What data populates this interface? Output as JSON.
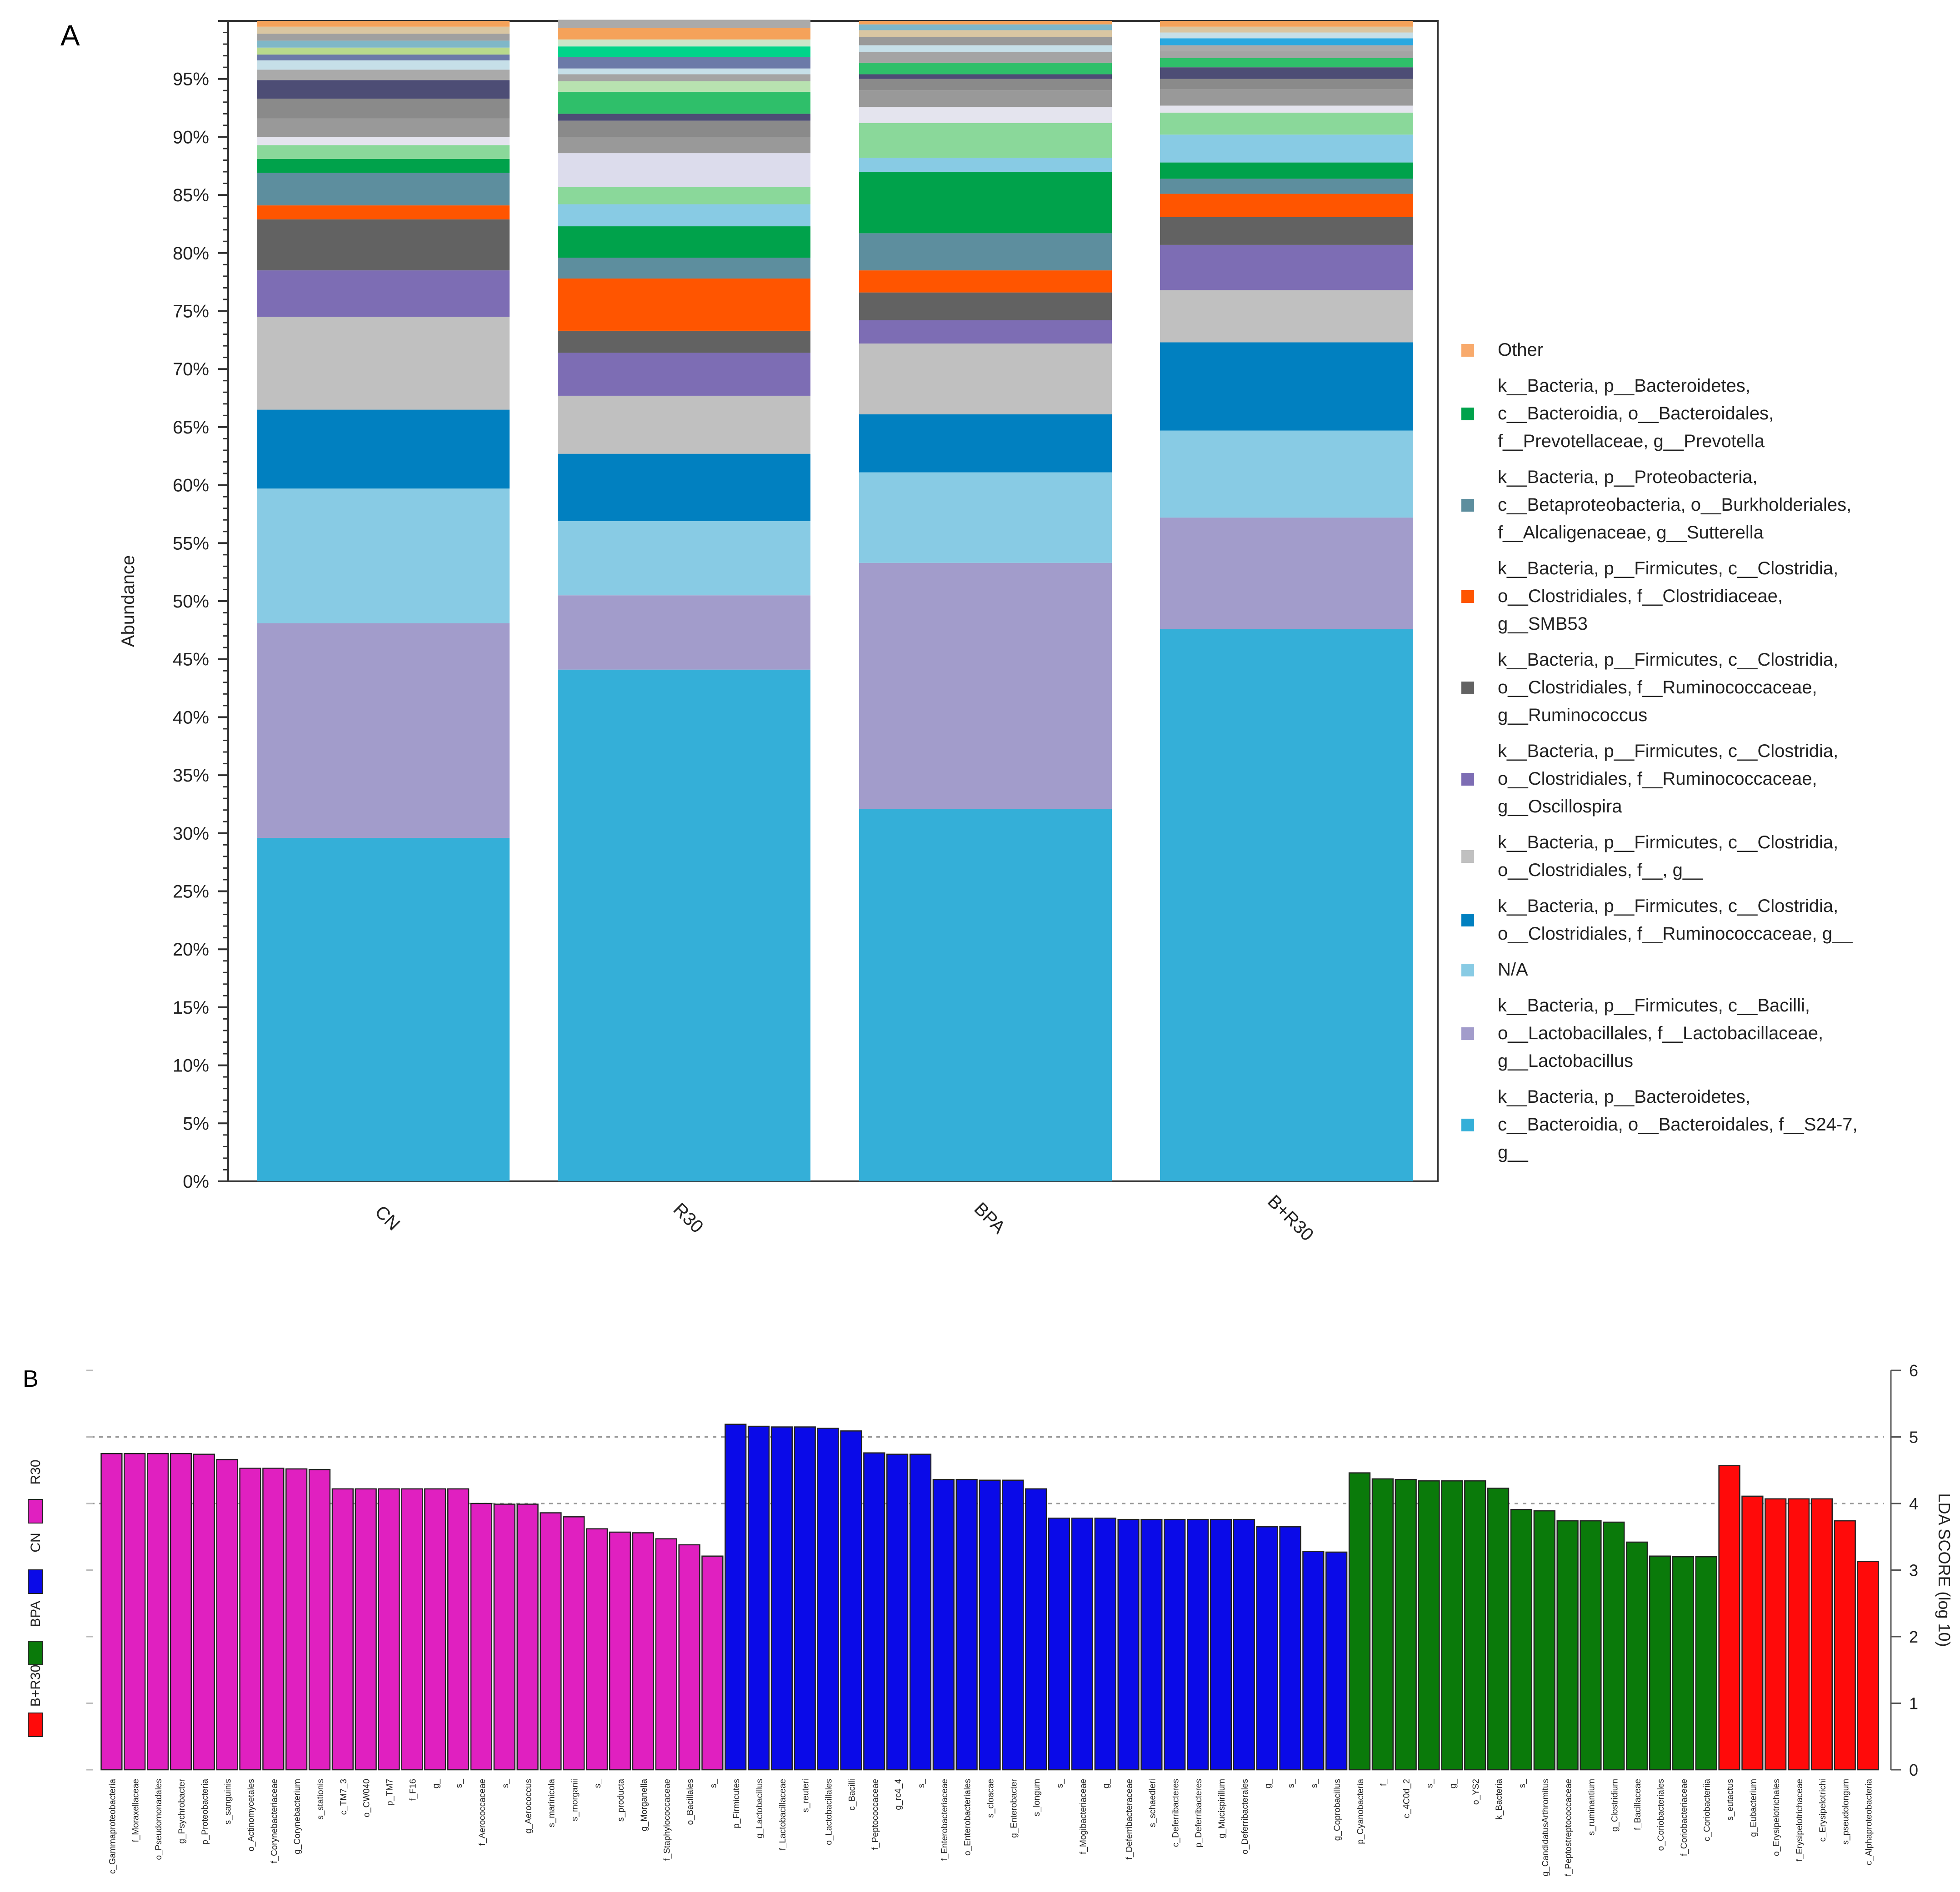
{
  "panel_labels": {
    "a": "A",
    "b": "B"
  },
  "chart_data": [
    {
      "type": "bar",
      "stacked": true,
      "panel": "A",
      "title": "",
      "xlabel": "",
      "ylabel": "Abundance",
      "ylim": [
        0,
        100
      ],
      "yticks": [
        0,
        5,
        10,
        15,
        20,
        25,
        30,
        35,
        40,
        45,
        50,
        55,
        60,
        65,
        70,
        75,
        80,
        85,
        90,
        95
      ],
      "ytick_labels": [
        "0%",
        "5%",
        "10%",
        "15%",
        "20%",
        "25%",
        "30%",
        "35%",
        "40%",
        "45%",
        "50%",
        "55%",
        "60%",
        "65%",
        "70%",
        "75%",
        "80%",
        "85%",
        "90%",
        "95%"
      ],
      "categories": [
        "CN",
        "R30",
        "BPA",
        "B+R30"
      ],
      "series": [
        {
          "name": "k__Bacteria, p__Bacteroidetes, c__Bacteroidia, o__Bacteroidales, f__S24-7, g__",
          "color": "#34afd8",
          "values": [
            29.6,
            44.1,
            32.1,
            47.6
          ]
        },
        {
          "name": "k__Bacteria, p__Firmicutes, c__Bacilli, o__Lactobacillales, f__Lactobacillaceae, g__Lactobacillus",
          "color": "#a29ccb",
          "values": [
            18.5,
            6.4,
            21.2,
            9.6
          ]
        },
        {
          "name": "N/A",
          "color": "#88cbe4",
          "values": [
            11.6,
            6.4,
            7.8,
            7.5
          ]
        },
        {
          "name": "k__Bacteria, p__Firmicutes, c__Clostridia, o__Clostridiales, f__Ruminococcaceae, g__",
          "color": "#0180c0",
          "values": [
            6.8,
            5.8,
            5.0,
            7.6
          ]
        },
        {
          "name": "k__Bacteria, p__Firmicutes, c__Clostridia, o__Clostridiales, f__, g__",
          "color": "#c0c0c0",
          "values": [
            8.0,
            5.0,
            6.1,
            4.5
          ]
        },
        {
          "name": "k__Bacteria, p__Firmicutes, c__Clostridia, o__Clostridiales, f__Ruminococcaceae, g__Oscillospira",
          "color": "#7d6db4",
          "values": [
            4.0,
            3.7,
            2.0,
            3.9
          ]
        },
        {
          "name": "k__Bacteria, p__Firmicutes, c__Clostridia, o__Clostridiales, f__Ruminococcaceae, g__Ruminococcus",
          "color": "#626262",
          "values": [
            4.4,
            1.9,
            2.4,
            2.4
          ]
        },
        {
          "name": "k__Bacteria, p__Firmicutes, c__Clostridia, o__Clostridiales, f__Clostridiaceae, g__SMB53",
          "color": "#ff5500",
          "values": [
            1.2,
            4.5,
            1.9,
            2.0
          ]
        },
        {
          "name": "k__Bacteria, p__Proteobacteria, c__Betaproteobacteria, o__Burkholderiales, f__Alcaligenaceae, g__Sutterella",
          "color": "#5d8e9e",
          "values": [
            2.8,
            1.8,
            3.2,
            1.3
          ]
        },
        {
          "name": "k__Bacteria, p__Bacteroidetes, c__Bacteroidia, o__Bacteroidales, f__Prevotellaceae, g__Prevotella",
          "color": "#00a24b",
          "values": [
            1.2,
            2.7,
            5.3,
            1.4
          ]
        },
        {
          "name": "Other",
          "color": "#f8aa6c",
          "values": [
            12.0,
            17.8,
            13.0,
            12.2
          ]
        }
      ],
      "other_segments": {
        "CN": [
          {
            "color": "#8ad89a",
            "value": 1.2
          },
          {
            "color": "#e4e4ee",
            "value": 0.7
          },
          {
            "color": "#999999",
            "value": 1.6
          },
          {
            "color": "#8a8a8a",
            "value": 1.7
          },
          {
            "color": "#4d4d75",
            "value": 1.6
          },
          {
            "color": "#aaaaaa",
            "value": 0.9
          },
          {
            "color": "#c6dfe8",
            "value": 0.8
          },
          {
            "color": "#6c7aa8",
            "value": 0.5
          },
          {
            "color": "#b8d98c",
            "value": 0.6
          },
          {
            "color": "#7fb7c8",
            "value": 0.6
          },
          {
            "color": "#a0a0a0",
            "value": 0.6
          },
          {
            "color": "#d9c6a2",
            "value": 0.6
          },
          {
            "color": "#f5a25a",
            "value": 0.5
          }
        ],
        "R30": [
          {
            "color": "#88cbe4",
            "value": 1.9
          },
          {
            "color": "#8ad89a",
            "value": 1.5
          },
          {
            "color": "#dcdcec",
            "value": 2.9
          },
          {
            "color": "#999999",
            "value": 1.4
          },
          {
            "color": "#8a8a8a",
            "value": 1.4
          },
          {
            "color": "#4d4d75",
            "value": 0.6
          },
          {
            "color": "#2fbf6a",
            "value": 1.9
          },
          {
            "color": "#b8e2b0",
            "value": 0.9
          },
          {
            "color": "#a4a4a4",
            "value": 0.6
          },
          {
            "color": "#c6dfe8",
            "value": 0.5
          },
          {
            "color": "#6c7aa8",
            "value": 1.0
          },
          {
            "color": "#00d48a",
            "value": 0.9
          },
          {
            "color": "#c8e6c9",
            "value": 0.6
          },
          {
            "color": "#f5a25a",
            "value": 1.0
          },
          {
            "color": "#aaaaaa",
            "value": 0.7
          }
        ],
        "BPA": [
          {
            "color": "#88cbe4",
            "value": 1.2
          },
          {
            "color": "#8ad89a",
            "value": 3.0
          },
          {
            "color": "#e4e4ee",
            "value": 1.4
          },
          {
            "color": "#999999",
            "value": 1.4
          },
          {
            "color": "#8a8a8a",
            "value": 1.0
          },
          {
            "color": "#4d4d75",
            "value": 0.4
          },
          {
            "color": "#2fbf6a",
            "value": 1.0
          },
          {
            "color": "#a4a4a4",
            "value": 0.9
          },
          {
            "color": "#c6dfe8",
            "value": 0.6
          },
          {
            "color": "#999999",
            "value": 0.7
          },
          {
            "color": "#d9c6a2",
            "value": 0.6
          },
          {
            "color": "#7fb7c8",
            "value": 0.5
          },
          {
            "color": "#f5a25a",
            "value": 0.3
          }
        ],
        "B+R30": [
          {
            "color": "#88cbe4",
            "value": 2.4
          },
          {
            "color": "#8ad89a",
            "value": 1.9
          },
          {
            "color": "#e4e4ee",
            "value": 0.6
          },
          {
            "color": "#999999",
            "value": 1.4
          },
          {
            "color": "#8a8a8a",
            "value": 0.9
          },
          {
            "color": "#4d4d75",
            "value": 1.0
          },
          {
            "color": "#2fbf6a",
            "value": 0.8
          },
          {
            "color": "#a4a4a4",
            "value": 0.6
          },
          {
            "color": "#aaaaaa",
            "value": 0.5
          },
          {
            "color": "#2aa8e0",
            "value": 0.6
          },
          {
            "color": "#c6dfe8",
            "value": 0.5
          },
          {
            "color": "#d9c6a2",
            "value": 0.5
          },
          {
            "color": "#f5a25a",
            "value": 0.5
          }
        ]
      },
      "legend": [
        {
          "label": "Other",
          "color": "#f8aa6c"
        },
        {
          "label": "k__Bacteria, p__Bacteroidetes,\nc__Bacteroidia, o__Bacteroidales,\nf__Prevotellaceae, g__Prevotella",
          "color": "#00a24b"
        },
        {
          "label": "k__Bacteria, p__Proteobacteria,\nc__Betaproteobacteria, o__Burkholderiales,\nf__Alcaligenaceae, g__Sutterella",
          "color": "#5d8e9e"
        },
        {
          "label": "k__Bacteria, p__Firmicutes, c__Clostridia,\no__Clostridiales, f__Clostridiaceae,\ng__SMB53",
          "color": "#ff5500"
        },
        {
          "label": "k__Bacteria, p__Firmicutes, c__Clostridia,\no__Clostridiales, f__Ruminococcaceae,\ng__Ruminococcus",
          "color": "#626262"
        },
        {
          "label": "k__Bacteria, p__Firmicutes, c__Clostridia,\no__Clostridiales, f__Ruminococcaceae,\ng__Oscillospira",
          "color": "#7d6db4"
        },
        {
          "label": "k__Bacteria, p__Firmicutes, c__Clostridia,\no__Clostridiales, f__, g__",
          "color": "#c0c0c0"
        },
        {
          "label": "k__Bacteria, p__Firmicutes, c__Clostridia,\no__Clostridiales, f__Ruminococcaceae, g__",
          "color": "#0180c0"
        },
        {
          "label": "N/A",
          "color": "#88cbe4"
        },
        {
          "label": "k__Bacteria, p__Firmicutes, c__Bacilli,\no__Lactobacillales, f__Lactobacillaceae,\ng__Lactobacillus",
          "color": "#a29ccb"
        },
        {
          "label": "k__Bacteria, p__Bacteroidetes,\nc__Bacteroidia, o__Bacteroidales, f__S24-7,\ng__",
          "color": "#34afd8"
        }
      ]
    },
    {
      "type": "bar",
      "panel": "B",
      "title": "",
      "xlabel": "",
      "ylabel": "LDA SCORE (log 10)",
      "ylim": [
        0,
        6
      ],
      "yticks": [
        0,
        1,
        2,
        3,
        4,
        5,
        6
      ],
      "grid": "dotted at 4 and 5",
      "group_legend": [
        {
          "label": "R30",
          "color": "#e020c0"
        },
        {
          "label": "CN",
          "color": "#0a0ae8"
        },
        {
          "label": "BPA",
          "color": "#0a7a0a"
        },
        {
          "label": "B+R30",
          "color": "#ff0a0a"
        }
      ],
      "groups": [
        {
          "name": "R30",
          "color": "#e020c0",
          "categories": [
            "c_Gammaproteobacteria",
            "f_Moraxellaceae",
            "o_Pseudomonadales",
            "g_Psychrobacter",
            "p_Proteobacteria",
            "s_sanguinis",
            "o_Actinomycetales",
            "f_Corynebacteriaceae",
            "g_Corynebacterium",
            "s_stationis",
            "c_TM7_3",
            "o_CW040",
            "p_TM7",
            "f_F16",
            "g_",
            "s_",
            "f_Aerococcaceae",
            "s_",
            "g_Aerococcus",
            "s_marinicola",
            "s_morganii",
            "s_",
            "s_producta",
            "g_Morganella",
            "f_Staphylococcaceae",
            "o_Bacillales",
            "s_"
          ],
          "values": [
            4.75,
            4.75,
            4.75,
            4.75,
            4.74,
            4.66,
            4.53,
            4.53,
            4.52,
            4.51,
            4.22,
            4.22,
            4.22,
            4.22,
            4.22,
            4.22,
            4.0,
            3.99,
            3.99,
            3.86,
            3.8,
            3.62,
            3.57,
            3.56,
            3.47,
            3.38,
            3.21
          ]
        },
        {
          "name": "CN",
          "color": "#0a0ae8",
          "categories": [
            "p_Firmicutes",
            "g_Lactobacillus",
            "f_Lactobacillaceae",
            "s_reuteri",
            "o_Lactobacillales",
            "c_Bacilli",
            "f_Peptococcaceae",
            "g_rc4_4",
            "s_",
            "f_Enterobacteriaceae",
            "o_Enterobacteriales",
            "s_cloacae",
            "g_Enterobacter",
            "s_longum",
            "s_",
            "f_Mogibacteriaceae",
            "g_",
            "f_Deferribacteraceae",
            "s_schaedleri",
            "c_Deferribacteres",
            "p_Deferribacteres",
            "g_Mucispirillum",
            "o_Deferribacterales",
            "g_",
            "s_",
            "s_",
            "g_Coprobacillus"
          ],
          "values": [
            5.19,
            5.16,
            5.15,
            5.15,
            5.13,
            5.09,
            4.76,
            4.74,
            4.74,
            4.36,
            4.36,
            4.35,
            4.35,
            4.22,
            3.78,
            3.78,
            3.78,
            3.76,
            3.76,
            3.76,
            3.76,
            3.76,
            3.76,
            3.65,
            3.65,
            3.28,
            3.27
          ]
        },
        {
          "name": "BPA",
          "color": "#0a7a0a",
          "categories": [
            "p_Cyanobacteria",
            "f_",
            "c_4C0d_2",
            "s_",
            "g_",
            "o_YS2",
            "k_Bacteria",
            "s_",
            "g_CandidatusArthromitus",
            "f_Peptostreptococcaceae",
            "s_ruminantium",
            "g_Clostridium",
            "f_Bacillaceae",
            "o_Coriobacteriales",
            "f_Coriobacteriaceae",
            "c_Coriobacteriia"
          ],
          "values": [
            4.46,
            4.37,
            4.36,
            4.34,
            4.34,
            4.34,
            4.23,
            3.91,
            3.89,
            3.74,
            3.74,
            3.72,
            3.42,
            3.21,
            3.2,
            3.2
          ]
        },
        {
          "name": "B+R30",
          "color": "#ff0a0a",
          "categories": [
            "s_eutactus",
            "g_Eubacterium",
            "o_Erysipelotrichales",
            "f_Erysipelotrichaceae",
            "c_Erysipelotrichi",
            "s_pseudolongum",
            "c_Alphaproteobacteria"
          ],
          "values": [
            4.57,
            4.11,
            4.07,
            4.07,
            4.07,
            3.74,
            3.13
          ]
        }
      ]
    }
  ]
}
